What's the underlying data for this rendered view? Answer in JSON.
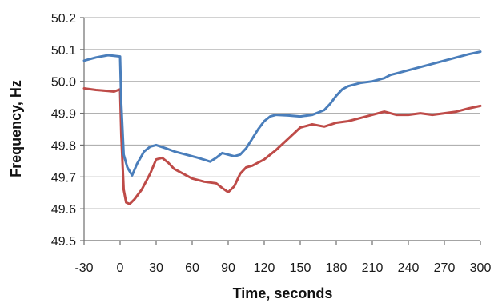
{
  "chart_data": {
    "type": "line",
    "xlabel": "Time, seconds",
    "ylabel": "Frequency, Hz",
    "xlim": [
      -30,
      300
    ],
    "ylim": [
      49.5,
      50.2
    ],
    "x_ticks": [
      "-30",
      "0",
      "30",
      "60",
      "90",
      "120",
      "150",
      "180",
      "210",
      "240",
      "270",
      "300"
    ],
    "y_ticks": [
      "49.5",
      "49.6",
      "49.7",
      "49.8",
      "49.9",
      "50.0",
      "50.1",
      "50.2"
    ],
    "grid": "horizontal",
    "legend": "none",
    "series": [
      {
        "color": "#4a7ebb",
        "x": [
          -30,
          -20,
          -10,
          -5,
          0,
          1,
          3,
          6,
          10,
          14,
          20,
          25,
          30,
          38,
          45,
          55,
          65,
          75,
          80,
          85,
          90,
          95,
          100,
          105,
          110,
          115,
          120,
          125,
          130,
          140,
          150,
          160,
          170,
          175,
          180,
          185,
          190,
          200,
          210,
          220,
          225,
          230,
          240,
          250,
          260,
          270,
          280,
          290,
          300
        ],
        "values": [
          50.065,
          50.075,
          50.082,
          50.08,
          50.078,
          49.93,
          49.77,
          49.73,
          49.705,
          49.74,
          49.78,
          49.795,
          49.8,
          49.79,
          49.78,
          49.77,
          49.76,
          49.748,
          49.76,
          49.775,
          49.77,
          49.765,
          49.77,
          49.79,
          49.82,
          49.85,
          49.875,
          49.89,
          49.895,
          49.893,
          49.89,
          49.895,
          49.91,
          49.93,
          49.955,
          49.975,
          49.985,
          49.995,
          50.0,
          50.01,
          50.02,
          50.025,
          50.035,
          50.045,
          50.055,
          50.065,
          50.075,
          50.085,
          50.093
        ]
      },
      {
        "color": "#be4b48",
        "x": [
          -30,
          -20,
          -10,
          -5,
          0,
          1,
          3,
          5,
          8,
          12,
          18,
          25,
          30,
          35,
          40,
          45,
          50,
          60,
          70,
          80,
          85,
          90,
          95,
          100,
          105,
          110,
          120,
          130,
          140,
          150,
          160,
          170,
          180,
          190,
          200,
          210,
          220,
          230,
          240,
          250,
          260,
          270,
          280,
          290,
          300
        ],
        "values": [
          49.978,
          49.973,
          49.97,
          49.968,
          49.975,
          49.83,
          49.66,
          49.62,
          49.615,
          49.63,
          49.66,
          49.71,
          49.755,
          49.76,
          49.745,
          49.725,
          49.715,
          49.695,
          49.685,
          49.68,
          49.665,
          49.652,
          49.67,
          49.71,
          49.73,
          49.735,
          49.755,
          49.785,
          49.82,
          49.855,
          49.865,
          49.858,
          49.87,
          49.875,
          49.885,
          49.895,
          49.905,
          49.895,
          49.895,
          49.9,
          49.895,
          49.9,
          49.905,
          49.915,
          49.923
        ]
      }
    ]
  }
}
